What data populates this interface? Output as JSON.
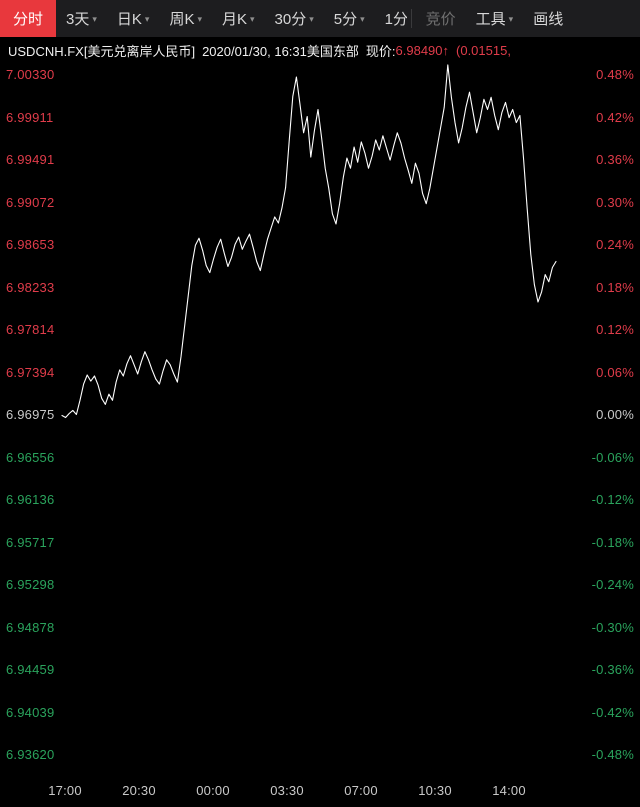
{
  "icons": {
    "chevron_down": "▾",
    "arrow_up": "↑"
  },
  "colors": {
    "background": "#000000",
    "toolbar_bg": "#1d1d1f",
    "active_tab": "#e8383d",
    "red": "#e03c4a",
    "green": "#2aa35c",
    "neutral": "#c9c9c9",
    "tab_text": "#d8d8d8",
    "disabled_text": "#707070",
    "line": "#ffffff"
  },
  "toolbar": {
    "tabs": [
      {
        "label": "分时"
      },
      {
        "label": "3天"
      },
      {
        "label": "日K"
      },
      {
        "label": "周K"
      },
      {
        "label": "月K"
      },
      {
        "label": "30分"
      },
      {
        "label": "5分"
      },
      {
        "label": "1分"
      },
      {
        "label": "竞价"
      },
      {
        "label": "工具"
      },
      {
        "label": "画线"
      }
    ]
  },
  "info_bar": {
    "symbol": "USDCNH.FX[美元兑离岸人民币]",
    "datetime": "2020/01/30, 16:31美国东部",
    "price_label": "现价:",
    "price": "6.98490",
    "change": "(0.01515,"
  },
  "chart_data": {
    "type": "line",
    "title": "USDCNH.FX 美元兑离岸人民币 分时图",
    "line_color": "#ffffff",
    "baseline_price": 6.96975,
    "axis_top_price": 7.0033,
    "axis_bottom_price": 6.9362,
    "current_price": 6.9849,
    "current_change": 0.01515,
    "y_axis_left": [
      "7.00330",
      "6.99911",
      "6.99491",
      "6.99072",
      "6.98653",
      "6.98233",
      "6.97814",
      "6.97394",
      "6.96975",
      "6.96556",
      "6.96136",
      "6.95717",
      "6.95298",
      "6.94878",
      "6.94459",
      "6.94039",
      "6.93620"
    ],
    "y_axis_right": [
      "0.48%",
      "0.42%",
      "0.36%",
      "0.30%",
      "0.24%",
      "0.18%",
      "0.12%",
      "0.06%",
      "0.00%",
      "-0.06%",
      "-0.12%",
      "-0.18%",
      "-0.24%",
      "-0.30%",
      "-0.36%",
      "-0.42%",
      "-0.48%"
    ],
    "x_axis": [
      "17:00",
      "20:30",
      "00:00",
      "03:30",
      "07:00",
      "10:30",
      "14:00"
    ],
    "series": [
      {
        "name": "price",
        "values": [
          6.9697,
          6.9695,
          6.9699,
          6.9702,
          6.9698,
          6.9712,
          6.9728,
          6.9737,
          6.9731,
          6.9736,
          6.9727,
          6.9714,
          6.9708,
          6.9718,
          6.9712,
          6.973,
          6.9742,
          6.9736,
          6.9748,
          6.9756,
          6.9747,
          6.9738,
          6.975,
          6.976,
          6.9752,
          6.9742,
          6.9733,
          6.9728,
          6.9741,
          6.9752,
          6.9747,
          6.9738,
          6.973,
          6.9755,
          6.9785,
          6.9815,
          6.9845,
          6.9865,
          6.9872,
          6.986,
          6.9845,
          6.9838,
          6.9851,
          6.9863,
          6.9871,
          6.9857,
          6.9844,
          6.9853,
          6.9866,
          6.9873,
          6.9861,
          6.9869,
          6.9876,
          6.9863,
          6.9849,
          6.984,
          6.9856,
          6.9871,
          6.9882,
          6.9893,
          6.9887,
          6.9902,
          6.9922,
          6.9968,
          7.0012,
          7.0031,
          7.0004,
          6.9976,
          6.9992,
          6.9952,
          6.9978,
          6.9999,
          6.9971,
          6.9941,
          6.9921,
          6.9896,
          6.9886,
          6.9906,
          6.9932,
          6.9951,
          6.9941,
          6.9962,
          6.9947,
          6.9967,
          6.9956,
          6.9941,
          6.9953,
          6.9969,
          6.9959,
          6.9973,
          6.9961,
          6.9949,
          6.9963,
          6.9976,
          6.9966,
          6.9951,
          6.9939,
          6.9926,
          6.9946,
          6.9936,
          6.9916,
          6.9906,
          6.9921,
          6.9941,
          6.9961,
          6.9981,
          7.0001,
          7.0043,
          7.0011,
          6.9986,
          6.9966,
          6.9981,
          7.0001,
          7.0016,
          6.9996,
          6.9976,
          6.9991,
          7.0009,
          6.9999,
          7.0011,
          6.9993,
          6.9979,
          6.9996,
          7.0006,
          6.9991,
          6.9999,
          6.9986,
          6.9993,
          6.9951,
          6.9901,
          6.9856,
          6.9826,
          6.9809,
          6.9819,
          6.9836,
          6.9829,
          6.9843,
          6.9849
        ]
      }
    ]
  }
}
